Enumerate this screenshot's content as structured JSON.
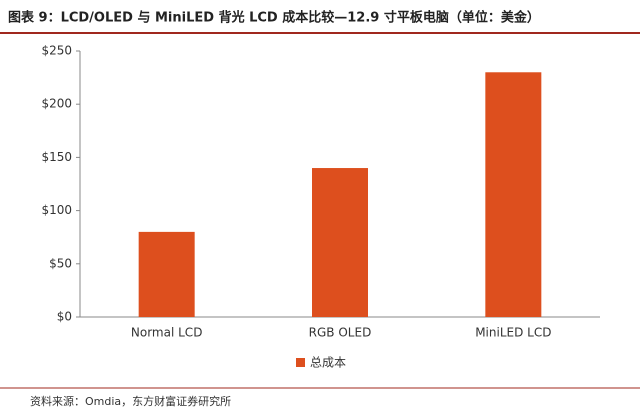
{
  "chart_data": {
    "type": "bar",
    "title": "图表 9：LCD/OLED 与 MiniLED 背光 LCD 成本比较—12.9 寸平板电脑（单位：美金）",
    "categories": [
      "Normal LCD",
      "RGB OLED",
      "MiniLED LCD"
    ],
    "series": [
      {
        "name": "总成本",
        "color": "#dd4f1e",
        "values": [
          80,
          140,
          230
        ]
      }
    ],
    "ylim": [
      0,
      250
    ],
    "yticks": [
      {
        "value": 0,
        "label": "$0"
      },
      {
        "value": 50,
        "label": "$50"
      },
      {
        "value": 100,
        "label": "$100"
      },
      {
        "value": 150,
        "label": "$150"
      },
      {
        "value": 200,
        "label": "$200"
      },
      {
        "value": 250,
        "label": "$250"
      }
    ],
    "legend": "bottom",
    "source": "资料来源：Omdia，东方财富证券研究所"
  }
}
